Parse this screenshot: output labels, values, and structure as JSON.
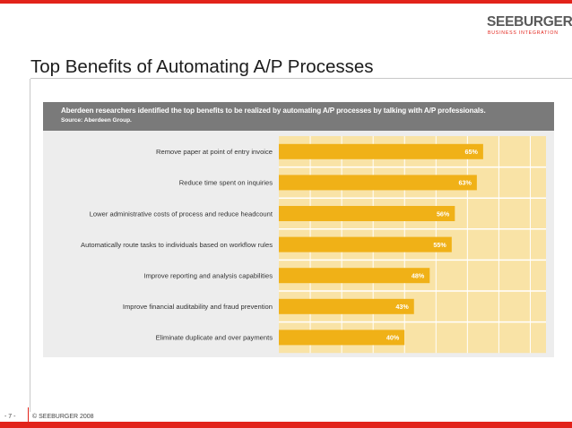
{
  "brand": {
    "name": "SEEBURGER",
    "tagline": "BUSINESS INTEGRATION",
    "accent_color": "#e2231a",
    "bar_color": "#f0b117",
    "track_color": "#f9e3a6",
    "header_color": "#7a7a7a"
  },
  "slide": {
    "title": "Top Benefits of Automating A/P Processes",
    "page_label": "- 7 -",
    "copyright": "© SEEBURGER 2008"
  },
  "panel": {
    "header": "Aberdeen researchers identified the top benefits to be realized by automating A/P processes by talking with A/P professionals.",
    "source": "Source: Aberdeen Group."
  },
  "chart_data": {
    "type": "bar",
    "orientation": "horizontal",
    "categories": [
      "Remove paper at point of entry invoice",
      "Reduce time spent on inquiries",
      "Lower administrative costs of process and reduce headcount",
      "Automatically route tasks to individuals based on workflow rules",
      "Improve reporting and analysis capabilities",
      "Improve financial auditability and fraud prevention",
      "Eliminate duplicate and over payments"
    ],
    "values": [
      65,
      63,
      56,
      55,
      48,
      43,
      40
    ],
    "data_labels": [
      "65%",
      "63%",
      "56%",
      "55%",
      "48%",
      "43%",
      "40%"
    ],
    "xlim": [
      0,
      85
    ],
    "grid": true,
    "legend": "none"
  }
}
